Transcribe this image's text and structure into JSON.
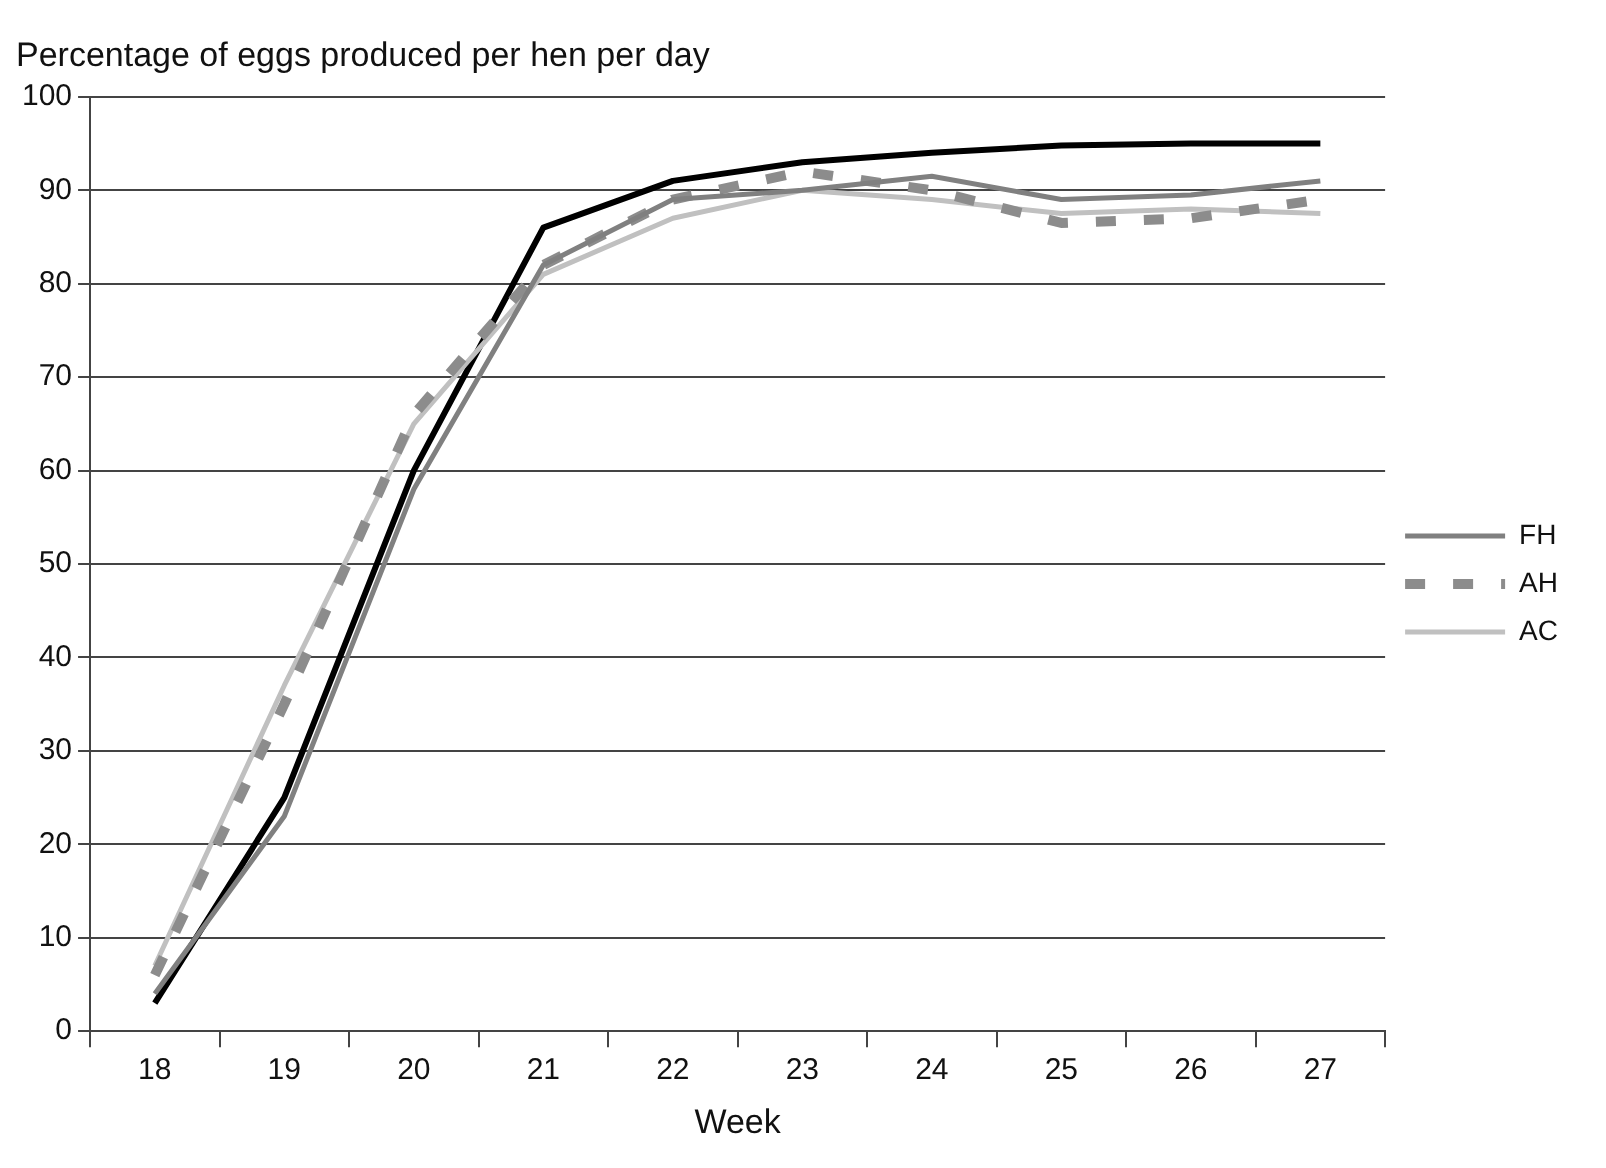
{
  "chart_data": {
    "type": "line",
    "title": "Percentage of eggs produced per hen per day",
    "xlabel": "Week",
    "categories": [
      "18",
      "19",
      "20",
      "21",
      "22",
      "23",
      "24",
      "25",
      "26",
      "27"
    ],
    "series": [
      {
        "name": "FH",
        "color": "#808080",
        "values": [
          4,
          23,
          58,
          82,
          89,
          90,
          91.5,
          89,
          89.5,
          91
        ]
      },
      {
        "name": "AH",
        "color": "#8c8c8c",
        "line_style": "dashed",
        "values": [
          6,
          35,
          66,
          82,
          89,
          92,
          90,
          86.5,
          87,
          89
        ]
      },
      {
        "name": "AC",
        "color": "#c0c0c0",
        "values": [
          7,
          37,
          65,
          81,
          87,
          90,
          89,
          87.5,
          88,
          87.5
        ]
      },
      {
        "color": "#000000",
        "values": [
          3,
          25,
          60,
          86,
          91,
          93,
          94,
          94.8,
          95,
          95
        ]
      }
    ],
    "ylim": [
      0,
      100
    ],
    "yticks": [
      0,
      10,
      20,
      30,
      40,
      50,
      60,
      70,
      80,
      90,
      100
    ],
    "grid": "y",
    "legend": "right",
    "marker": "none"
  }
}
